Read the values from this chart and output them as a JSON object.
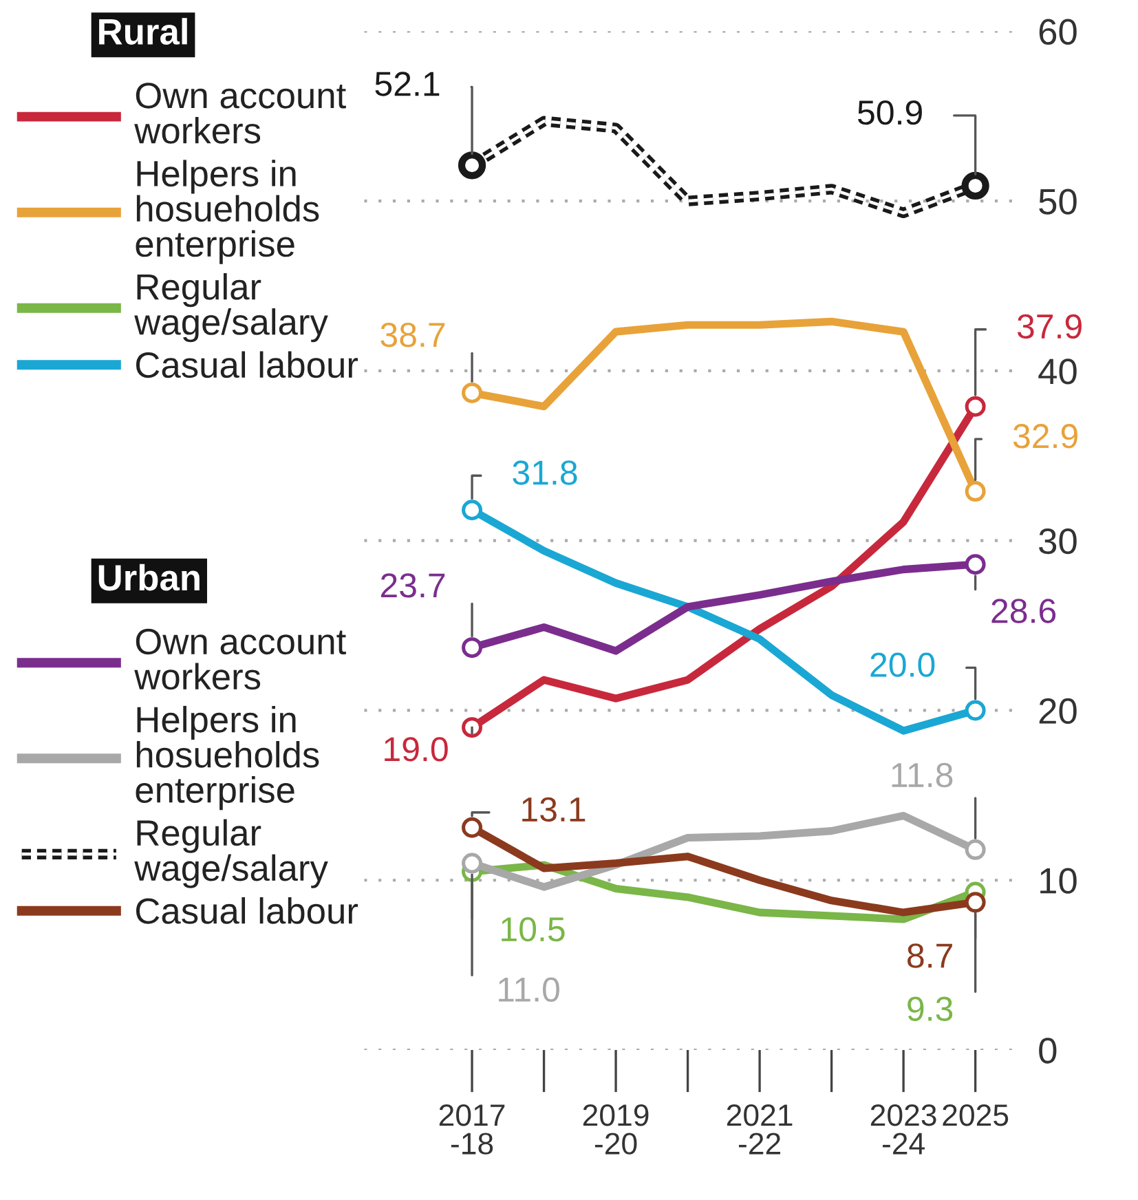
{
  "chart_data": {
    "type": "line",
    "categories": [
      "2017\n-18",
      null,
      "2019\n-20",
      null,
      "2021\n-22",
      null,
      "2023\n-24",
      "2025"
    ],
    "series": [
      {
        "name": "Own account workers",
        "color": "#c8283c",
        "values": [
          19.0,
          21.8,
          20.7,
          21.8,
          24.8,
          27.3,
          31.1,
          37.9
        ],
        "value_labels": [
          "19.0",
          null,
          null,
          null,
          null,
          null,
          null,
          "37.9"
        ]
      },
      {
        "name": "Helpers in hosueholds enterprise",
        "color": "#e8a23a",
        "values": [
          38.7,
          37.9,
          42.3,
          42.7,
          42.7,
          42.9,
          42.3,
          32.9
        ],
        "value_labels": [
          "38.7",
          null,
          null,
          null,
          null,
          null,
          null,
          "32.9"
        ]
      },
      {
        "name": "Regular wage/salary",
        "color": "#7ab648",
        "values": [
          10.5,
          10.9,
          9.5,
          9.0,
          8.1,
          7.9,
          7.7,
          9.3
        ],
        "value_labels": [
          "10.5",
          null,
          null,
          null,
          null,
          null,
          null,
          "9.3"
        ]
      },
      {
        "name": "Casual labour",
        "color": "#1aa7d4",
        "values": [
          31.8,
          29.4,
          27.5,
          26.1,
          24.2,
          20.9,
          18.8,
          20.0
        ],
        "value_labels": [
          "31.8",
          null,
          null,
          null,
          null,
          null,
          null,
          "20.0"
        ]
      },
      {
        "name": "Own account workers",
        "color": "#7b2d8e",
        "values": [
          23.7,
          24.9,
          23.5,
          26.1,
          26.8,
          27.6,
          28.3,
          28.6
        ],
        "value_labels": [
          "23.7",
          null,
          null,
          null,
          null,
          null,
          null,
          "28.6"
        ]
      },
      {
        "name": "Helpers in hosueholds enterprise",
        "color": "#a8a8a8",
        "values": [
          11.0,
          9.6,
          10.9,
          12.5,
          12.6,
          12.9,
          13.8,
          11.8
        ],
        "value_labels": [
          "11.0",
          null,
          null,
          null,
          null,
          null,
          null,
          "11.8"
        ]
      },
      {
        "name": "Regular wage/salary",
        "color": "#1a1a1a",
        "line_style": "dashed",
        "values": [
          52.1,
          54.7,
          54.3,
          50.0,
          50.3,
          50.7,
          49.3,
          50.9
        ],
        "value_labels": [
          "52.1",
          null,
          null,
          null,
          null,
          null,
          null,
          "50.9"
        ]
      },
      {
        "name": "Casual labour",
        "color": "#8b3a1e",
        "values": [
          13.1,
          10.7,
          11.0,
          11.4,
          10.0,
          8.8,
          8.1,
          8.7
        ],
        "value_labels": [
          "13.1",
          null,
          null,
          null,
          null,
          null,
          null,
          "8.7"
        ]
      }
    ],
    "annotations": [
      "Rural",
      "Urban"
    ],
    "ylim": [
      0,
      60
    ],
    "yticks": [
      0,
      10,
      20,
      30,
      40,
      50,
      60
    ],
    "grid": "y",
    "legend": "left",
    "line_style": "solid"
  }
}
